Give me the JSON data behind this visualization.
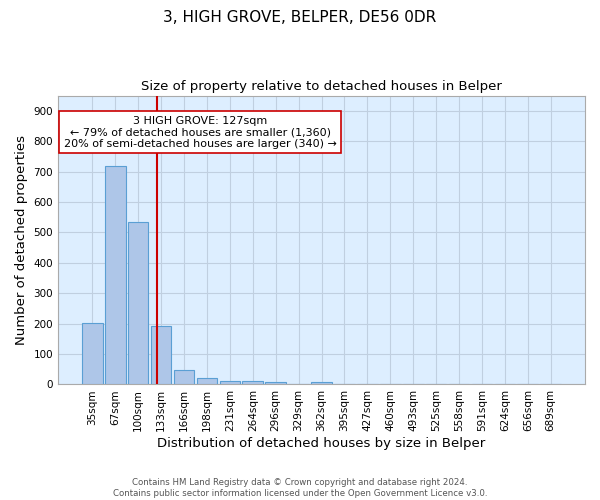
{
  "title_line1": "3, HIGH GROVE, BELPER, DE56 0DR",
  "title_line2": "Size of property relative to detached houses in Belper",
  "xlabel": "Distribution of detached houses by size in Belper",
  "ylabel": "Number of detached properties",
  "footer_line1": "Contains HM Land Registry data © Crown copyright and database right 2024.",
  "footer_line2": "Contains public sector information licensed under the Open Government Licence v3.0.",
  "annotation_line1": "3 HIGH GROVE: 127sqm",
  "annotation_line2": "← 79% of detached houses are smaller (1,360)",
  "annotation_line3": "20% of semi-detached houses are larger (340) →",
  "bar_labels": [
    "35sqm",
    "67sqm",
    "100sqm",
    "133sqm",
    "166sqm",
    "198sqm",
    "231sqm",
    "264sqm",
    "296sqm",
    "329sqm",
    "362sqm",
    "395sqm",
    "427sqm",
    "460sqm",
    "493sqm",
    "525sqm",
    "558sqm",
    "591sqm",
    "624sqm",
    "656sqm",
    "689sqm"
  ],
  "bar_values": [
    203,
    717,
    535,
    192,
    46,
    20,
    13,
    12,
    8,
    0,
    9,
    0,
    0,
    0,
    0,
    0,
    0,
    0,
    0,
    0,
    0
  ],
  "bar_color": "#aec6e8",
  "bar_edge_color": "#5a9fd4",
  "background_color": "#ddeeff",
  "grid_color": "#c0cfe0",
  "vline_x": 2.82,
  "vline_color": "#cc0000",
  "ylim": [
    0,
    950
  ],
  "yticks": [
    0,
    100,
    200,
    300,
    400,
    500,
    600,
    700,
    800,
    900
  ],
  "annotation_box_color": "#ffffff",
  "annotation_box_edge": "#cc0000",
  "title_fontsize": 11,
  "subtitle_fontsize": 9.5,
  "axis_label_fontsize": 9.5,
  "tick_fontsize": 7.5,
  "annotation_fontsize": 8
}
